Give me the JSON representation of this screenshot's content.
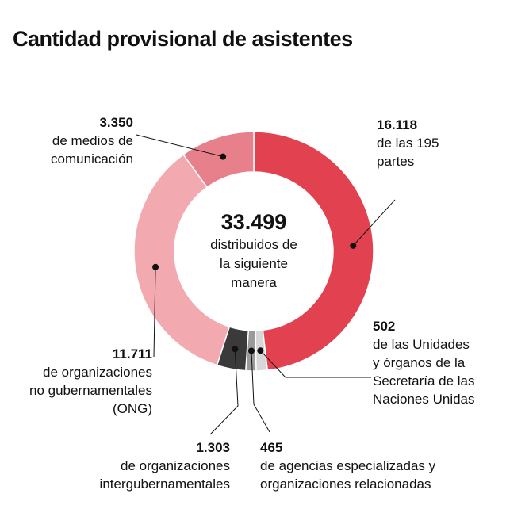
{
  "title": "Cantidad provisional de asistentes",
  "center": {
    "total": "33.499",
    "text": "distribuidos de\nla siguiente\nmanera"
  },
  "colors": {
    "partes": "#e2424f",
    "unidades_onu": "#d7d7d7",
    "agencias": "#9a9a9a",
    "intergubernamentales": "#3a3a3a",
    "ong": "#f2aab0",
    "medios": "#e8808b"
  },
  "labels": {
    "partes": {
      "value": "16.118",
      "desc": "de las 195\npartes"
    },
    "unidades_onu": {
      "value": "502",
      "desc": "de las Unidades\ny órganos de la\nSecretaría de las\nNaciones Unidas"
    },
    "agencias": {
      "value": "465",
      "desc": "de agencias especializadas y\norganizaciones relacionadas"
    },
    "intergubernamentales": {
      "value": "1.303",
      "desc": "de organizaciones\nintergubernamentales"
    },
    "ong": {
      "value": "11.711",
      "desc": "de organizaciones\nno gubernamentales\n(ONG)"
    },
    "medios": {
      "value": "3.350",
      "desc": "de medios de\ncomunicación"
    }
  },
  "chart_data": {
    "type": "pie",
    "donut": true,
    "total": 33499,
    "slices": [
      {
        "key": "partes",
        "label": "de las 195 partes",
        "value": 16118
      },
      {
        "key": "unidades_onu",
        "label": "de las Unidades y órganos de la Secretaría de las Naciones Unidas",
        "value": 502
      },
      {
        "key": "agencias",
        "label": "de agencias especializadas y organizaciones relacionadas",
        "value": 465
      },
      {
        "key": "intergubernamentales",
        "label": "de organizaciones intergubernamentales",
        "value": 1303
      },
      {
        "key": "ong",
        "label": "de organizaciones no gubernamentales (ONG)",
        "value": 11711
      },
      {
        "key": "medios",
        "label": "de medios de comunicación",
        "value": 3350
      }
    ]
  }
}
